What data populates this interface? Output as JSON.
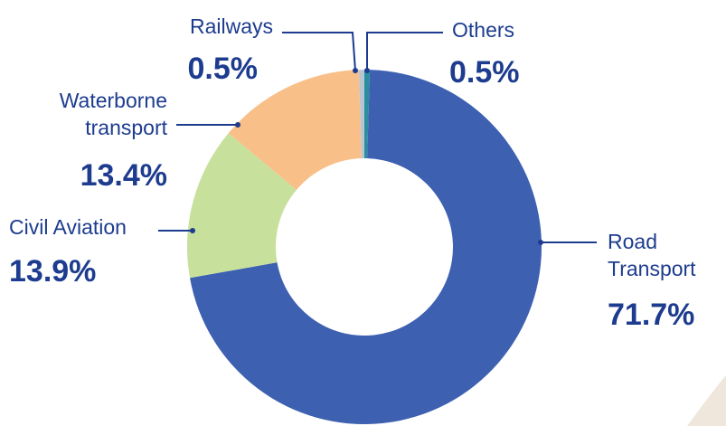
{
  "chart_data": {
    "type": "pie",
    "donut": true,
    "categories": [
      "Others",
      "Road Transport",
      "Civil Aviation",
      "Waterborne transport",
      "Railways"
    ],
    "values": [
      0.5,
      71.7,
      13.9,
      13.4,
      0.5
    ],
    "value_labels": [
      "0.5%",
      "71.7%",
      "13.9%",
      "13.4%",
      "0.5%"
    ],
    "colors": [
      "#2a8e9e",
      "#3d60b0",
      "#c7e19c",
      "#f8bf88",
      "#b9c6d2"
    ]
  }
}
